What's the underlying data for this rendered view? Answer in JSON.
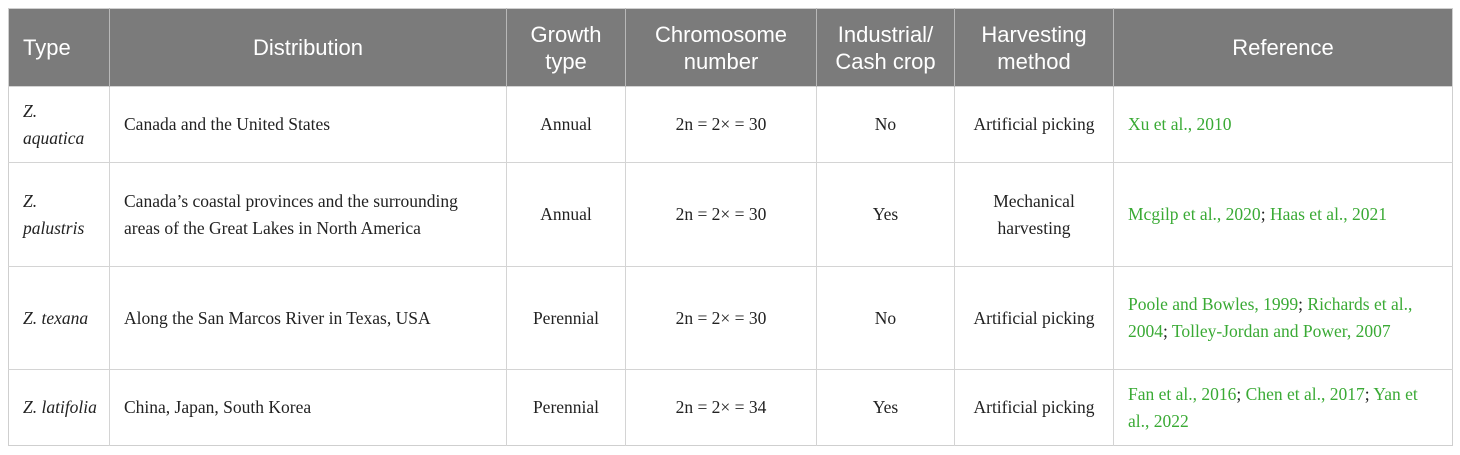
{
  "table": {
    "headers": [
      "Type",
      "Distribution",
      "Growth type",
      "Chromosome number",
      "Industrial/ Cash crop",
      "Harvesting method",
      "Reference"
    ],
    "rows": [
      {
        "type": "Z. aquatica",
        "distribution": "Canada and the United States",
        "growth_type": "Annual",
        "chromosome_number": "2n = 2× = 30",
        "cash_crop": "No",
        "harvesting_method": "Artificial picking",
        "refs": [
          "Xu et al., 2010"
        ]
      },
      {
        "type": "Z. palustris",
        "distribution": "Canada’s coastal provinces and the surrounding areas of the Great Lakes in North America",
        "growth_type": "Annual",
        "chromosome_number": "2n = 2× = 30",
        "cash_crop": "Yes",
        "harvesting_method": "Mechanical harvesting",
        "refs": [
          "Mcgilp et al., 2020",
          "Haas et al., 2021"
        ]
      },
      {
        "type": "Z. texana",
        "distribution": "Along the San Marcos River in Texas, USA",
        "growth_type": "Perennial",
        "chromosome_number": "2n = 2× = 30",
        "cash_crop": "No",
        "harvesting_method": "Artificial picking",
        "refs": [
          "Poole and Bowles, 1999",
          "Richards et al., 2004",
          "Tolley-Jordan and Power, 2007"
        ]
      },
      {
        "type": "Z. latifolia",
        "distribution": "China, Japan, South Korea",
        "growth_type": "Perennial",
        "chromosome_number": "2n = 2× = 34",
        "cash_crop": "Yes",
        "harvesting_method": "Artificial picking",
        "refs": [
          "Fan et al., 2016",
          "Chen et al., 2017",
          "Yan et al., 2022"
        ]
      }
    ],
    "ref_separator": "; ",
    "colors": {
      "header_bg": "#7b7b7b",
      "header_text": "#ffffff",
      "reference_link": "#3aaa35",
      "body_text": "#222222"
    }
  }
}
